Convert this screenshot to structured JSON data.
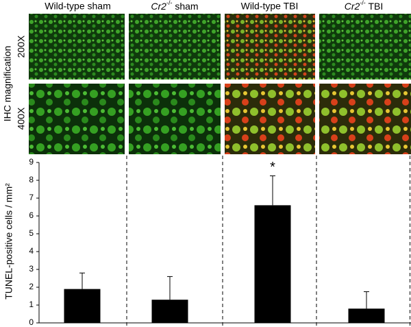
{
  "chart_data": {
    "type": "bar",
    "categories": [
      "Wild-type sham",
      "Cr2-/- sham",
      "Wild-type TBI",
      "Cr2-/- TBI"
    ],
    "values": [
      1.9,
      1.3,
      6.6,
      0.8
    ],
    "errors": [
      0.9,
      1.3,
      1.65,
      0.95
    ],
    "color": "#000000",
    "ylabel": "TUNEL-positive cells / mm²",
    "ylim": [
      0,
      9
    ],
    "yticks": [
      0,
      1,
      2,
      3,
      4,
      5,
      6,
      7,
      8,
      9
    ],
    "image_rows": [
      "200X",
      "400X"
    ],
    "image_axis_label": "IHC magnification",
    "annotations": [
      {
        "category": 2,
        "text": "*"
      }
    ]
  }
}
